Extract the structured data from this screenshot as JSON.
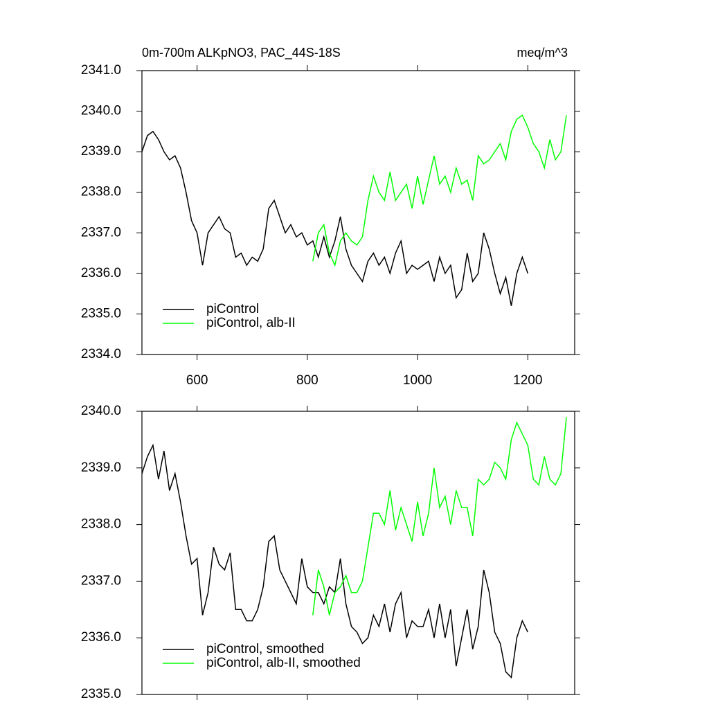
{
  "chart_data": [
    {
      "type": "line",
      "title": "0m-700m ALKpNO3, PAC_44S-18S",
      "units": "meq/m^3",
      "xlim": [
        500,
        1285
      ],
      "xticks": [
        600,
        800,
        1000,
        1200
      ],
      "show_xtick_labels": true,
      "ylim": [
        2334,
        2341
      ],
      "yticks": [
        {
          "value": 2334,
          "label": "2334.0"
        },
        {
          "value": 2335,
          "label": "2335.0"
        },
        {
          "value": 2336,
          "label": "2336.0"
        },
        {
          "value": 2337,
          "label": "2337.0"
        },
        {
          "value": 2338,
          "label": "2338.0"
        },
        {
          "value": 2339,
          "label": "2339.0"
        },
        {
          "value": 2340,
          "label": "2340.0"
        },
        {
          "value": 2341,
          "label": "2341.0"
        }
      ],
      "legend": "lower left",
      "series": [
        {
          "name": "piControl",
          "color": "#000000",
          "x": [
            500,
            510,
            520,
            530,
            540,
            550,
            560,
            570,
            580,
            590,
            600,
            610,
            620,
            630,
            640,
            650,
            660,
            670,
            680,
            690,
            700,
            710,
            720,
            730,
            740,
            750,
            760,
            770,
            780,
            790,
            800,
            810,
            820,
            830,
            840,
            850,
            860,
            870,
            880,
            890,
            900,
            910,
            920,
            930,
            940,
            950,
            960,
            970,
            980,
            990,
            1000,
            1010,
            1020,
            1030,
            1040,
            1050,
            1060,
            1070,
            1080,
            1090,
            1100,
            1110,
            1120,
            1130,
            1140,
            1150,
            1160,
            1170,
            1180,
            1190,
            1200
          ],
          "values": [
            2339.0,
            2339.4,
            2339.5,
            2339.3,
            2339.0,
            2338.8,
            2338.9,
            2338.6,
            2338.0,
            2337.3,
            2337.0,
            2336.2,
            2337.0,
            2337.2,
            2337.4,
            2337.1,
            2337.0,
            2336.4,
            2336.5,
            2336.2,
            2336.4,
            2336.3,
            2336.6,
            2337.6,
            2337.8,
            2337.4,
            2337.0,
            2337.2,
            2336.9,
            2337.0,
            2336.7,
            2336.8,
            2336.4,
            2336.9,
            2336.4,
            2336.8,
            2337.4,
            2336.6,
            2336.2,
            2336.0,
            2335.8,
            2336.3,
            2336.5,
            2336.2,
            2336.4,
            2336.0,
            2336.5,
            2336.8,
            2336.0,
            2336.2,
            2336.1,
            2336.2,
            2336.3,
            2335.8,
            2336.4,
            2336.0,
            2336.2,
            2335.4,
            2335.6,
            2336.5,
            2335.8,
            2336.0,
            2337.0,
            2336.6,
            2336.0,
            2335.5,
            2335.9,
            2335.2,
            2336.0,
            2336.4,
            2336.0
          ]
        },
        {
          "name": "piControl, alb-II",
          "color": "#00ff00",
          "x": [
            810,
            820,
            830,
            840,
            850,
            860,
            870,
            880,
            890,
            900,
            910,
            920,
            930,
            940,
            950,
            960,
            970,
            980,
            990,
            1000,
            1010,
            1020,
            1030,
            1040,
            1050,
            1060,
            1070,
            1080,
            1090,
            1100,
            1110,
            1120,
            1130,
            1140,
            1150,
            1160,
            1170,
            1180,
            1190,
            1200,
            1210,
            1220,
            1230,
            1240,
            1250,
            1260,
            1270
          ],
          "values": [
            2336.3,
            2337.0,
            2337.2,
            2336.5,
            2336.2,
            2336.8,
            2337.0,
            2336.8,
            2336.7,
            2336.9,
            2337.8,
            2338.4,
            2338.0,
            2337.8,
            2338.5,
            2337.8,
            2338.0,
            2338.2,
            2337.6,
            2338.4,
            2337.7,
            2338.3,
            2338.9,
            2338.2,
            2338.4,
            2338.0,
            2338.6,
            2338.2,
            2338.3,
            2337.8,
            2338.9,
            2338.7,
            2338.8,
            2339.0,
            2339.2,
            2338.8,
            2339.5,
            2339.8,
            2339.9,
            2339.6,
            2339.2,
            2339.0,
            2338.6,
            2339.3,
            2338.8,
            2339.0,
            2339.9
          ]
        }
      ]
    },
    {
      "type": "line",
      "xlim": [
        500,
        1285
      ],
      "xticks": [
        600,
        800,
        1000,
        1200
      ],
      "show_xtick_labels": false,
      "ylim": [
        2335,
        2340
      ],
      "yticks": [
        {
          "value": 2335,
          "label": "2335.0"
        },
        {
          "value": 2336,
          "label": "2336.0"
        },
        {
          "value": 2337,
          "label": "2337.0"
        },
        {
          "value": 2338,
          "label": "2338.0"
        },
        {
          "value": 2339,
          "label": "2339.0"
        },
        {
          "value": 2340,
          "label": "2340.0"
        }
      ],
      "legend": "lower left",
      "series": [
        {
          "name": "piControl, smoothed",
          "color": "#000000",
          "x": [
            500,
            510,
            520,
            530,
            540,
            550,
            560,
            570,
            580,
            590,
            600,
            610,
            620,
            630,
            640,
            650,
            660,
            670,
            680,
            690,
            700,
            710,
            720,
            730,
            740,
            750,
            760,
            770,
            780,
            790,
            800,
            810,
            820,
            830,
            840,
            850,
            860,
            870,
            880,
            890,
            900,
            910,
            920,
            930,
            940,
            950,
            960,
            970,
            980,
            990,
            1000,
            1010,
            1020,
            1030,
            1040,
            1050,
            1060,
            1070,
            1080,
            1090,
            1100,
            1110,
            1120,
            1130,
            1140,
            1150,
            1160,
            1170,
            1180,
            1190,
            1200
          ],
          "values": [
            2338.9,
            2339.2,
            2339.4,
            2338.8,
            2339.3,
            2338.6,
            2338.9,
            2338.4,
            2337.8,
            2337.3,
            2337.4,
            2336.4,
            2336.8,
            2337.6,
            2337.3,
            2337.2,
            2337.5,
            2336.5,
            2336.5,
            2336.3,
            2336.3,
            2336.5,
            2336.9,
            2337.7,
            2337.8,
            2337.2,
            2337.0,
            2336.8,
            2336.6,
            2337.4,
            2336.9,
            2336.8,
            2336.8,
            2336.6,
            2336.9,
            2336.8,
            2337.4,
            2336.6,
            2336.2,
            2336.1,
            2335.9,
            2336.0,
            2336.4,
            2336.2,
            2336.6,
            2336.1,
            2336.6,
            2336.8,
            2336.0,
            2336.3,
            2336.2,
            2336.2,
            2336.5,
            2336.0,
            2336.6,
            2336.0,
            2336.5,
            2335.5,
            2336.0,
            2336.5,
            2335.8,
            2336.2,
            2337.2,
            2336.8,
            2336.1,
            2335.9,
            2335.4,
            2335.3,
            2336.0,
            2336.3,
            2336.1
          ]
        },
        {
          "name": "piControl, alb-II, smoothed",
          "color": "#00ff00",
          "x": [
            810,
            820,
            830,
            840,
            850,
            860,
            870,
            880,
            890,
            900,
            910,
            920,
            930,
            940,
            950,
            960,
            970,
            980,
            990,
            1000,
            1010,
            1020,
            1030,
            1040,
            1050,
            1060,
            1070,
            1080,
            1090,
            1100,
            1110,
            1120,
            1130,
            1140,
            1150,
            1160,
            1170,
            1180,
            1190,
            1200,
            1210,
            1220,
            1230,
            1240,
            1250,
            1260,
            1270
          ],
          "values": [
            2336.4,
            2337.2,
            2336.9,
            2336.4,
            2336.8,
            2336.9,
            2337.1,
            2336.8,
            2336.8,
            2337.0,
            2337.6,
            2338.2,
            2338.2,
            2338.0,
            2338.6,
            2337.9,
            2338.3,
            2338.0,
            2337.7,
            2338.4,
            2337.8,
            2338.2,
            2339.0,
            2338.3,
            2338.5,
            2338.0,
            2338.6,
            2338.3,
            2338.3,
            2337.8,
            2338.8,
            2338.7,
            2338.8,
            2339.1,
            2339.0,
            2338.8,
            2339.5,
            2339.8,
            2339.6,
            2339.4,
            2338.8,
            2338.7,
            2339.2,
            2338.8,
            2338.7,
            2338.9,
            2339.9
          ]
        }
      ]
    }
  ]
}
